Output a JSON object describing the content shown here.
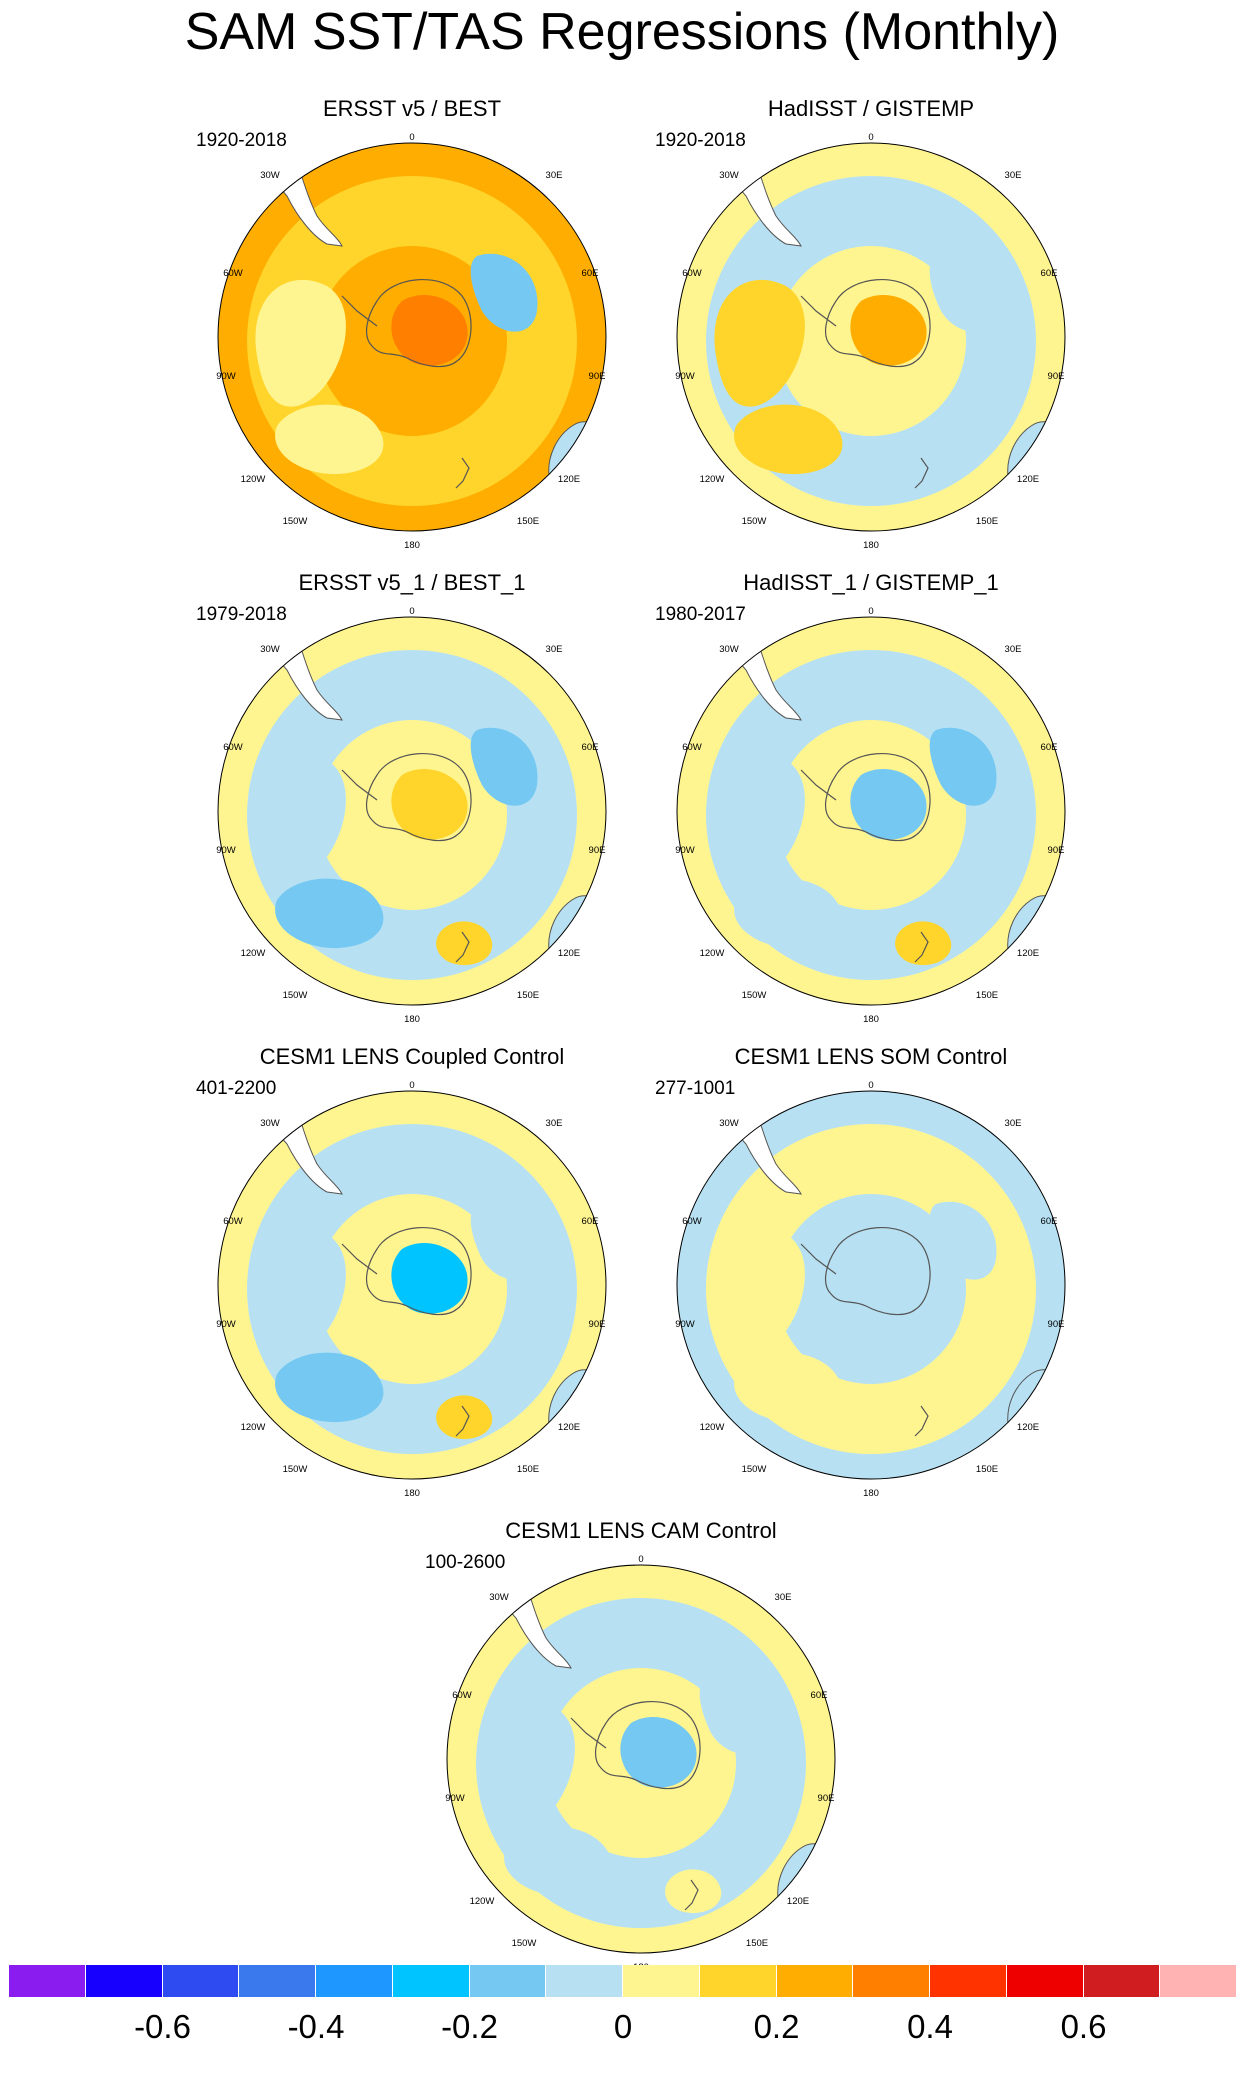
{
  "title": "SAM SST/TAS Regressions (Monthly)",
  "lon_labels": [
    "0",
    "30E",
    "60E",
    "90E",
    "120E",
    "150E",
    "180",
    "150W",
    "120W",
    "90W",
    "60W",
    "30W"
  ],
  "panels": [
    {
      "id": "ersst",
      "title": "ERSST v5 / BEST",
      "years": "1920-2018",
      "background": "#ffad00",
      "features": [
        "#ffd42b",
        "#fff590",
        "#fff590",
        "#ff7f00",
        "#ffd42b",
        "#74c8f2"
      ]
    },
    {
      "id": "hadisst",
      "title": "HadISST / GISTEMP",
      "years": "1920-2018",
      "background": "#fff590",
      "features": [
        "#b7e1f3",
        "#ffd42b",
        "#ffd42b",
        "#ffad00",
        "#b7e1f3",
        "#b7e1f3"
      ]
    },
    {
      "id": "ersst1",
      "title": "ERSST v5_1 / BEST_1",
      "years": "1979-2018",
      "background": "#fff590",
      "features": [
        "#b7e1f3",
        "#b7e1f3",
        "#74c8f2",
        "#ffd42b",
        "#ffd42b",
        "#74c8f2"
      ]
    },
    {
      "id": "hadisst1",
      "title": "HadISST_1 / GISTEMP_1",
      "years": "1980-2017",
      "background": "#fff590",
      "features": [
        "#b7e1f3",
        "#b7e1f3",
        "#b7e1f3",
        "#74c8f2",
        "#ffd42b",
        "#74c8f2"
      ]
    },
    {
      "id": "coupled",
      "title": "CESM1 LENS Coupled Control",
      "years": "401-2200",
      "background": "#fff590",
      "features": [
        "#b7e1f3",
        "#b7e1f3",
        "#74c8f2",
        "#00c4ff",
        "#ffd42b",
        "#b7e1f3"
      ]
    },
    {
      "id": "som",
      "title": "CESM1 LENS SOM Control",
      "years": "277-1001",
      "background": "#b7e1f3",
      "features": [
        "#fff590",
        "#fff590",
        "#fff590",
        "#b7e1f3",
        "#fff590",
        "#b7e1f3"
      ]
    },
    {
      "id": "cam",
      "title": "CESM1 LENS CAM Control",
      "years": "100-2600",
      "background": "#fff590",
      "features": [
        "#b7e1f3",
        "#b7e1f3",
        "#b7e1f3",
        "#74c8f2",
        "#fff590",
        "#b7e1f3"
      ]
    }
  ],
  "colorbar": {
    "colors": [
      "#8a1cf0",
      "#1800ff",
      "#2d4bf0",
      "#3a78ee",
      "#1e98ff",
      "#00c4ff",
      "#74c8f2",
      "#b7e1f3",
      "#fff590",
      "#ffd42b",
      "#ffad00",
      "#ff7f00",
      "#ff3300",
      "#ee0000",
      "#d01d20",
      "#ffb3b3"
    ],
    "labels": [
      "-0.6",
      "-0.4",
      "-0.2",
      "0",
      "0.2",
      "0.4",
      "0.6"
    ],
    "label_boundary_index": [
      2,
      4,
      6,
      8,
      10,
      12,
      14
    ]
  }
}
